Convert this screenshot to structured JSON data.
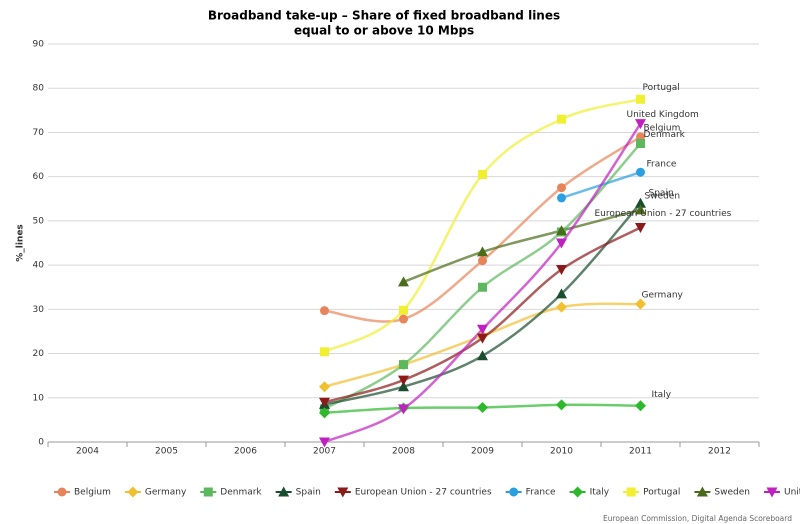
{
  "chart_data": {
    "type": "line",
    "title": "Broadband take-up – Share of fixed broadband lines",
    "subtitle": "equal to or above 10 Mbps",
    "y_label": "%_lines",
    "credit": "European Commission, Digital Agenda Scoreboard",
    "categories": [
      "2004",
      "2005",
      "2006",
      "2007",
      "2008",
      "2009",
      "2010",
      "2011",
      "2012"
    ],
    "ylim": [
      0,
      90
    ],
    "yticks": [
      0,
      10,
      20,
      30,
      40,
      50,
      60,
      70,
      80,
      90
    ],
    "grid": true,
    "smooth": true,
    "legend": "bottom",
    "series": [
      {
        "name": "Belgium",
        "color": "#e8845a",
        "marker": "circle",
        "values": [
          null,
          null,
          null,
          29.7,
          27.8,
          41,
          57.5,
          69,
          null
        ]
      },
      {
        "name": "Germany",
        "color": "#f0c030",
        "marker": "diamond",
        "values": [
          null,
          null,
          null,
          12.5,
          17.5,
          24,
          30.5,
          31.2,
          null
        ]
      },
      {
        "name": "Denmark",
        "color": "#5cb85c",
        "marker": "square",
        "values": [
          null,
          null,
          null,
          7.5,
          17.5,
          35,
          47.5,
          67.5,
          null
        ]
      },
      {
        "name": "Spain",
        "color": "#1a4d2e",
        "marker": "triangle",
        "values": [
          null,
          null,
          null,
          8.5,
          12.5,
          19.5,
          33.5,
          54,
          null
        ]
      },
      {
        "name": "European Union - 27 countries",
        "color": "#8b1a1a",
        "marker": "triangle-down",
        "values": [
          null,
          null,
          null,
          9,
          14,
          23.5,
          39,
          48.5,
          null
        ]
      },
      {
        "name": "France",
        "color": "#2aa0e0",
        "marker": "circle",
        "values": [
          null,
          null,
          null,
          null,
          null,
          null,
          55.2,
          61,
          null
        ]
      },
      {
        "name": "Italy",
        "color": "#2db82d",
        "marker": "diamond",
        "values": [
          null,
          null,
          null,
          6.6,
          7.7,
          7.8,
          8.4,
          8.2,
          null
        ]
      },
      {
        "name": "Portugal",
        "color": "#f0f030",
        "marker": "square",
        "values": [
          null,
          null,
          null,
          20.4,
          29.8,
          60.5,
          73,
          77.5,
          null
        ]
      },
      {
        "name": "Sweden",
        "color": "#4a6b1a",
        "marker": "triangle",
        "values": [
          null,
          null,
          null,
          null,
          36.2,
          43,
          47.8,
          52.5,
          null
        ]
      },
      {
        "name": "United Kingdom",
        "color": "#c020c0",
        "marker": "triangle-down",
        "values": [
          null,
          null,
          null,
          0,
          7.5,
          25.5,
          45,
          72,
          null
        ]
      }
    ]
  }
}
